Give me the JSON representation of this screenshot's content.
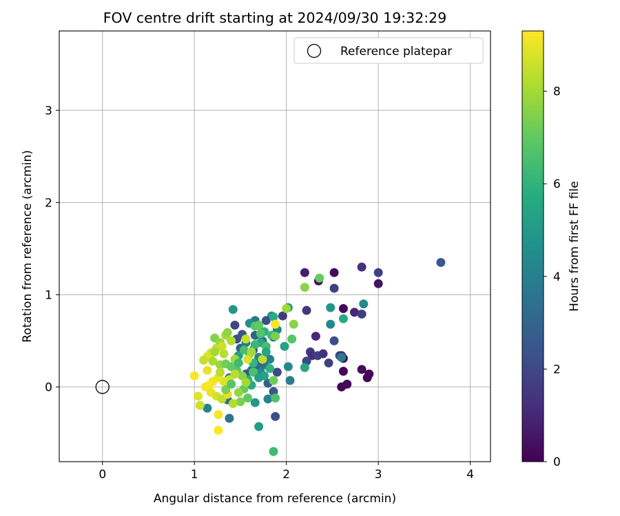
{
  "chart_data": {
    "type": "scatter",
    "title": "FOV centre drift starting at 2024/09/30 19:32:29",
    "xlabel": "Angular distance from reference (arcmin)",
    "ylabel": "Rotation from reference (arcmin)",
    "xlim": [
      -0.47,
      4.22
    ],
    "ylim": [
      -0.81,
      3.86
    ],
    "xticks": [
      0,
      1,
      2,
      3,
      4
    ],
    "yticks": [
      0,
      1,
      2,
      3
    ],
    "grid": true,
    "legend": {
      "placement": "top-right",
      "entries": [
        "Reference platepar"
      ]
    },
    "reference_point": {
      "x": 0,
      "y": 0,
      "label": "Reference platepar"
    },
    "colorbar": {
      "label": "Hours from first FF file",
      "colormap": "viridis",
      "range": [
        0,
        9.3
      ],
      "ticks": [
        0,
        2,
        4,
        6,
        8
      ]
    },
    "series": [
      {
        "points": [
          [
            2.52,
            1.24,
            0.2
          ],
          [
            2.35,
            1.15,
            0.3
          ],
          [
            2.62,
            0.85,
            0.2
          ],
          [
            2.62,
            0.31,
            0.3
          ],
          [
            2.62,
            0.17,
            0.2
          ],
          [
            2.6,
            0.0,
            0.1
          ],
          [
            2.66,
            0.03,
            0.2
          ],
          [
            2.82,
            0.19,
            0.3
          ],
          [
            2.9,
            0.14,
            0.2
          ],
          [
            2.88,
            0.1,
            0.1
          ],
          [
            3.0,
            1.12,
            0.5
          ],
          [
            2.82,
            1.3,
            1.3
          ],
          [
            3.0,
            1.24,
            1.8
          ],
          [
            2.2,
            1.24,
            0.8
          ],
          [
            2.52,
            1.07,
            1.8
          ],
          [
            2.74,
            0.81,
            1.0
          ],
          [
            2.82,
            0.79,
            1.7
          ],
          [
            2.22,
            0.83,
            1.5
          ],
          [
            2.32,
            0.55,
            1.0
          ],
          [
            2.26,
            0.38,
            1.6
          ],
          [
            2.28,
            0.34,
            1.2
          ],
          [
            2.34,
            0.34,
            1.7
          ],
          [
            2.4,
            0.36,
            1.3
          ],
          [
            2.46,
            0.26,
            1.8
          ],
          [
            2.52,
            0.5,
            2.2
          ],
          [
            2.58,
            0.34,
            2.1
          ],
          [
            2.6,
            0.34,
            1.1
          ],
          [
            2.22,
            0.28,
            2.0
          ],
          [
            3.68,
            1.35,
            2.6
          ],
          [
            2.84,
            0.9,
            4.4
          ],
          [
            2.48,
            0.86,
            4.8
          ],
          [
            2.48,
            0.68,
            4.4
          ],
          [
            2.62,
            0.74,
            5.6
          ],
          [
            2.6,
            0.32,
            3.9
          ],
          [
            1.96,
            0.77,
            1.6
          ],
          [
            2.02,
            0.86,
            4.9
          ],
          [
            1.84,
            0.77,
            4.4
          ],
          [
            1.78,
            0.72,
            2.3
          ],
          [
            1.66,
            0.72,
            3.7
          ],
          [
            1.6,
            0.69,
            4.6
          ],
          [
            1.44,
            0.67,
            2.0
          ],
          [
            1.42,
            0.84,
            4.9
          ],
          [
            1.9,
            0.62,
            4.2
          ],
          [
            1.86,
            0.54,
            3.2
          ],
          [
            1.74,
            0.5,
            3.6
          ],
          [
            1.66,
            0.56,
            3.0
          ],
          [
            1.52,
            0.57,
            2.5
          ],
          [
            1.46,
            0.52,
            2.3
          ],
          [
            1.5,
            0.42,
            3.0
          ],
          [
            1.56,
            0.48,
            3.9
          ],
          [
            1.64,
            0.4,
            2.4
          ],
          [
            1.7,
            0.32,
            4.1
          ],
          [
            1.76,
            0.24,
            3.5
          ],
          [
            1.82,
            0.3,
            4.0
          ],
          [
            1.9,
            0.16,
            2.1
          ],
          [
            1.72,
            0.16,
            4.3
          ],
          [
            1.68,
            0.24,
            3.2
          ],
          [
            1.62,
            0.18,
            3.9
          ],
          [
            1.56,
            0.14,
            2.4
          ],
          [
            1.48,
            0.34,
            5.2
          ],
          [
            1.42,
            0.22,
            4.5
          ],
          [
            1.38,
            0.1,
            3.8
          ],
          [
            1.36,
            -0.14,
            3.1
          ],
          [
            1.38,
            -0.34,
            3.6
          ],
          [
            1.14,
            -0.23,
            4.2
          ],
          [
            1.8,
            0.04,
            2.7
          ],
          [
            1.86,
            -0.05,
            2.6
          ],
          [
            1.88,
            -0.32,
            2.2
          ],
          [
            1.8,
            -0.13,
            4.0
          ],
          [
            1.7,
            -0.43,
            5.1
          ],
          [
            1.66,
            -0.17,
            5.0
          ],
          [
            1.62,
            0.02,
            5.6
          ],
          [
            1.98,
            0.44,
            5.3
          ],
          [
            2.02,
            0.22,
            4.4
          ],
          [
            2.04,
            0.07,
            3.9
          ],
          [
            2.2,
            0.21,
            5.5
          ],
          [
            1.86,
            -0.7,
            6.3
          ],
          [
            1.88,
            -0.12,
            6.6
          ],
          [
            1.84,
            0.56,
            6.3
          ],
          [
            1.76,
            0.6,
            6.0
          ],
          [
            1.72,
            0.48,
            5.6
          ],
          [
            1.66,
            0.46,
            6.2
          ],
          [
            1.6,
            0.36,
            6.8
          ],
          [
            1.54,
            0.4,
            6.5
          ],
          [
            1.66,
            0.66,
            6.8
          ],
          [
            1.7,
            0.67,
            7.0
          ],
          [
            1.72,
            0.58,
            6.7
          ],
          [
            1.78,
            0.44,
            6.5
          ],
          [
            1.64,
            0.26,
            6.1
          ],
          [
            1.58,
            0.08,
            5.8
          ],
          [
            1.54,
            -0.02,
            7.1
          ],
          [
            1.5,
            -0.16,
            7.4
          ],
          [
            1.58,
            -0.12,
            7.0
          ],
          [
            1.64,
            0.16,
            6.6
          ],
          [
            1.76,
            0.12,
            5.4
          ],
          [
            1.82,
            0.2,
            6.0
          ],
          [
            1.86,
            0.07,
            7.2
          ],
          [
            1.88,
            0.55,
            7.4
          ],
          [
            2.06,
            0.52,
            6.8
          ],
          [
            2.08,
            0.68,
            7.6
          ],
          [
            2.0,
            0.85,
            7.9
          ],
          [
            1.86,
            0.76,
            5.8
          ],
          [
            2.2,
            1.08,
            7.6
          ],
          [
            2.36,
            1.18,
            7.1
          ],
          [
            1.22,
            0.53,
            7.5
          ],
          [
            1.28,
            0.48,
            7.9
          ],
          [
            1.32,
            0.36,
            8.3
          ],
          [
            1.34,
            0.56,
            8.0
          ],
          [
            1.36,
            0.59,
            7.7
          ],
          [
            1.4,
            0.5,
            8.2
          ],
          [
            1.24,
            0.42,
            8.4
          ],
          [
            1.18,
            0.37,
            8.7
          ],
          [
            1.14,
            0.33,
            8.9
          ],
          [
            1.1,
            0.29,
            8.5
          ],
          [
            1.2,
            0.28,
            8.1
          ],
          [
            1.28,
            0.24,
            7.8
          ],
          [
            1.34,
            0.25,
            7.3
          ],
          [
            1.4,
            0.22,
            7.0
          ],
          [
            1.46,
            0.18,
            6.9
          ],
          [
            1.52,
            0.12,
            7.6
          ],
          [
            1.56,
            0.05,
            8.0
          ],
          [
            1.44,
            0.14,
            8.3
          ],
          [
            1.38,
            0.08,
            8.6
          ],
          [
            1.32,
            0.06,
            8.8
          ],
          [
            1.26,
            0.1,
            9.0
          ],
          [
            1.2,
            0.06,
            9.1
          ],
          [
            1.16,
            0.02,
            9.3
          ],
          [
            1.12,
            0.0,
            9.2
          ],
          [
            1.18,
            -0.06,
            9.0
          ],
          [
            1.24,
            -0.1,
            8.7
          ],
          [
            1.3,
            -0.13,
            8.4
          ],
          [
            1.36,
            -0.08,
            8.9
          ],
          [
            1.42,
            -0.18,
            8.2
          ],
          [
            1.48,
            -0.06,
            7.8
          ],
          [
            1.06,
            -0.2,
            8.6
          ],
          [
            1.04,
            -0.1,
            8.9
          ],
          [
            1.0,
            0.12,
            9.2
          ],
          [
            1.14,
            0.18,
            9.0
          ],
          [
            1.26,
            -0.3,
            9.2
          ],
          [
            1.26,
            -0.47,
            9.3
          ],
          [
            1.56,
            0.52,
            8.5
          ],
          [
            1.58,
            0.3,
            8.8
          ],
          [
            1.62,
            0.38,
            8.0
          ],
          [
            1.74,
            0.3,
            8.4
          ],
          [
            1.88,
            0.68,
            9.2
          ],
          [
            1.22,
            0.38,
            8.0
          ],
          [
            1.3,
            0.44,
            8.6
          ],
          [
            1.44,
            0.3,
            8.0
          ],
          [
            1.28,
            0.16,
            8.3
          ],
          [
            1.34,
            -0.03,
            7.4
          ],
          [
            1.4,
            0.03,
            6.8
          ],
          [
            1.48,
            0.26,
            6.3
          ],
          [
            1.7,
            0.1,
            5.2
          ],
          [
            1.78,
            0.38,
            5.5
          ]
        ]
      }
    ]
  }
}
